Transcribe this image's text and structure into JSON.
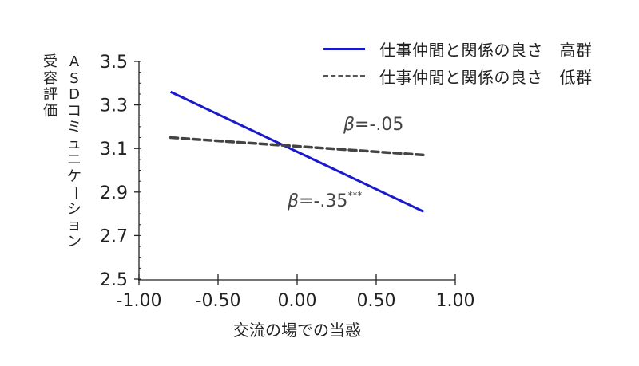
{
  "chart_data": {
    "type": "line",
    "title": "",
    "xlabel": "交流の場での当惑",
    "ylabel": "ASDコミュニケーション受容評価",
    "ylabel_columns": [
      "ASDコミュニケーション",
      "受容評価"
    ],
    "xlim": [
      -1.0,
      1.0
    ],
    "ylim": [
      2.5,
      3.5
    ],
    "xticks": [
      "-1.00",
      "-0.50",
      "0.00",
      "0.50",
      "1.00"
    ],
    "yticks": [
      "3.5",
      "3.3",
      "3.1",
      "2.9",
      "2.7",
      "2.5"
    ],
    "grid": false,
    "legend_position": "top-right",
    "series": [
      {
        "name": "仕事仲間と関係の良さ　高群",
        "style": "solid",
        "color": "#1a1acc",
        "x": [
          -0.8,
          0.8
        ],
        "values": [
          3.36,
          2.81
        ]
      },
      {
        "name": "仕事仲間と関係の良さ　低群",
        "style": "dashed",
        "color": "#444444",
        "x": [
          -0.8,
          0.8
        ],
        "values": [
          3.15,
          3.07
        ]
      }
    ],
    "annotations": [
      {
        "text": "β=-.05",
        "label": "β",
        "value": "=-.05",
        "sig": "",
        "series": "低群"
      },
      {
        "text": "β=-.35***",
        "label": "β",
        "value": "=-.35",
        "sig": "***",
        "series": "高群"
      }
    ]
  }
}
